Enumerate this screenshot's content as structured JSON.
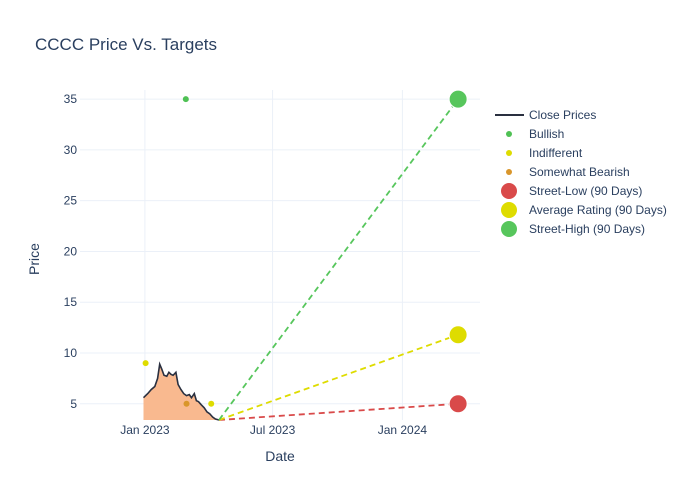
{
  "chart_data": {
    "type": "line",
    "title": "CCCC Price Vs. Targets",
    "xlabel": "Date",
    "ylabel": "Price",
    "xlim": [
      "2022-10-01",
      "2024-04-20"
    ],
    "ylim": [
      3.4,
      35.9
    ],
    "x_ticks": [
      {
        "date": "2023-01-01",
        "label": "Jan 2023"
      },
      {
        "date": "2023-07-01",
        "label": "Jul 2023"
      },
      {
        "date": "2024-01-01",
        "label": "Jan 2024"
      }
    ],
    "y_ticks": [
      5,
      10,
      15,
      20,
      25,
      30,
      35
    ],
    "grid": true,
    "legend_position": "top-right",
    "close_prices": {
      "name": "Close Prices",
      "line_color": "#2a3040",
      "fill_color": "#f9b98f",
      "points": [
        [
          "2022-12-30",
          5.6
        ],
        [
          "2023-01-05",
          6.0
        ],
        [
          "2023-01-10",
          6.4
        ],
        [
          "2023-01-15",
          6.7
        ],
        [
          "2023-01-19",
          7.5
        ],
        [
          "2023-01-22",
          8.9
        ],
        [
          "2023-01-25",
          8.4
        ],
        [
          "2023-01-28",
          7.8
        ],
        [
          "2023-02-01",
          7.7
        ],
        [
          "2023-02-04",
          8.1
        ],
        [
          "2023-02-07",
          7.9
        ],
        [
          "2023-02-10",
          7.8
        ],
        [
          "2023-02-14",
          8.1
        ],
        [
          "2023-02-17",
          6.9
        ],
        [
          "2023-02-21",
          6.4
        ],
        [
          "2023-02-25",
          6.0
        ],
        [
          "2023-03-01",
          5.8
        ],
        [
          "2023-03-05",
          5.9
        ],
        [
          "2023-03-08",
          5.6
        ],
        [
          "2023-03-12",
          6.0
        ],
        [
          "2023-03-15",
          5.3
        ],
        [
          "2023-03-18",
          5.2
        ],
        [
          "2023-03-22",
          4.9
        ],
        [
          "2023-03-26",
          4.6
        ],
        [
          "2023-03-30",
          4.2
        ],
        [
          "2023-04-03",
          4.0
        ],
        [
          "2023-04-07",
          3.7
        ],
        [
          "2023-04-11",
          3.5
        ],
        [
          "2023-04-16",
          3.4
        ]
      ]
    },
    "ratings": [
      {
        "name": "Bullish",
        "color": "#4fc154",
        "points": [
          [
            "2023-02-28",
            35
          ]
        ]
      },
      {
        "name": "Indifferent",
        "color": "#dedc00",
        "points": [
          [
            "2023-01-02",
            9
          ],
          [
            "2023-04-05",
            5
          ]
        ]
      },
      {
        "name": "Somewhat Bearish",
        "color": "#d9962b",
        "points": [
          [
            "2023-03-01",
            5
          ]
        ]
      }
    ],
    "targets": {
      "start": [
        "2023-04-16",
        3.4
      ],
      "date": "2024-03-20",
      "series": [
        {
          "name": "Street-Low (90 Days)",
          "value": 5,
          "color": "#d94a4a"
        },
        {
          "name": "Average Rating (90 Days)",
          "value": 11.8,
          "color": "#dedc00"
        },
        {
          "name": "Street-High (90 Days)",
          "value": 35,
          "color": "#57c65c"
        }
      ]
    },
    "legend": [
      {
        "label": "Close Prices",
        "kind": "line",
        "color": "#2a3040"
      },
      {
        "label": "Bullish",
        "kind": "dot",
        "color": "#4fc154"
      },
      {
        "label": "Indifferent",
        "kind": "dot",
        "color": "#dedc00"
      },
      {
        "label": "Somewhat Bearish",
        "kind": "dot",
        "color": "#d9962b"
      },
      {
        "label": "Street-Low (90 Days)",
        "kind": "marker",
        "color": "#d94a4a"
      },
      {
        "label": "Average Rating (90 Days)",
        "kind": "marker",
        "color": "#dedc00"
      },
      {
        "label": "Street-High (90 Days)",
        "kind": "marker",
        "color": "#57c65c"
      }
    ]
  }
}
